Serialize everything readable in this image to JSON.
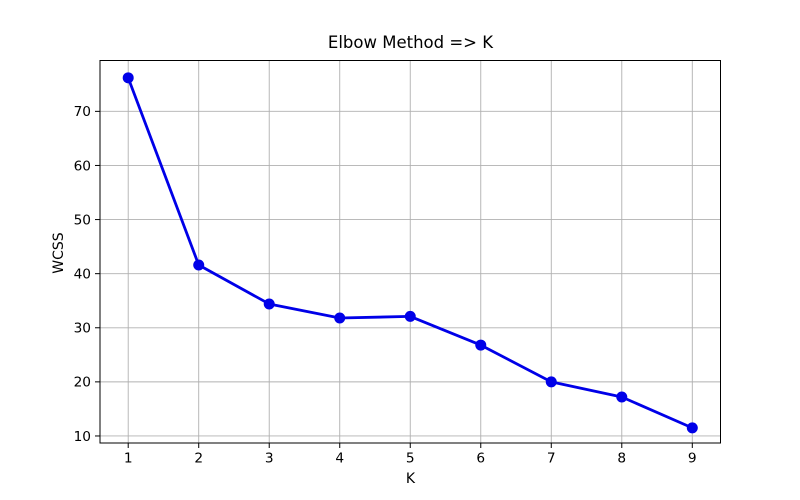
{
  "figure": {
    "background_color": "#ffffff"
  },
  "chart_data": {
    "type": "line",
    "title": "Elbow Method => K",
    "xlabel": "K",
    "ylabel": "WCSS",
    "x": [
      1,
      2,
      3,
      4,
      5,
      6,
      7,
      8,
      9
    ],
    "y": [
      76.2,
      41.6,
      34.4,
      31.8,
      32.1,
      26.8,
      20.0,
      17.2,
      11.5
    ],
    "xticks": [
      1,
      2,
      3,
      4,
      5,
      6,
      7,
      8,
      9
    ],
    "yticks": [
      10,
      20,
      30,
      40,
      50,
      60,
      70
    ],
    "xlim": [
      0.6,
      9.4
    ],
    "ylim": [
      8.7,
      79.4
    ],
    "grid": true,
    "legend_position": "none",
    "line_color": "#0000e8",
    "marker": "circle",
    "grid_color": "#b0b0b0",
    "axis_color": "#000000",
    "tick_label_color": "#000000"
  }
}
